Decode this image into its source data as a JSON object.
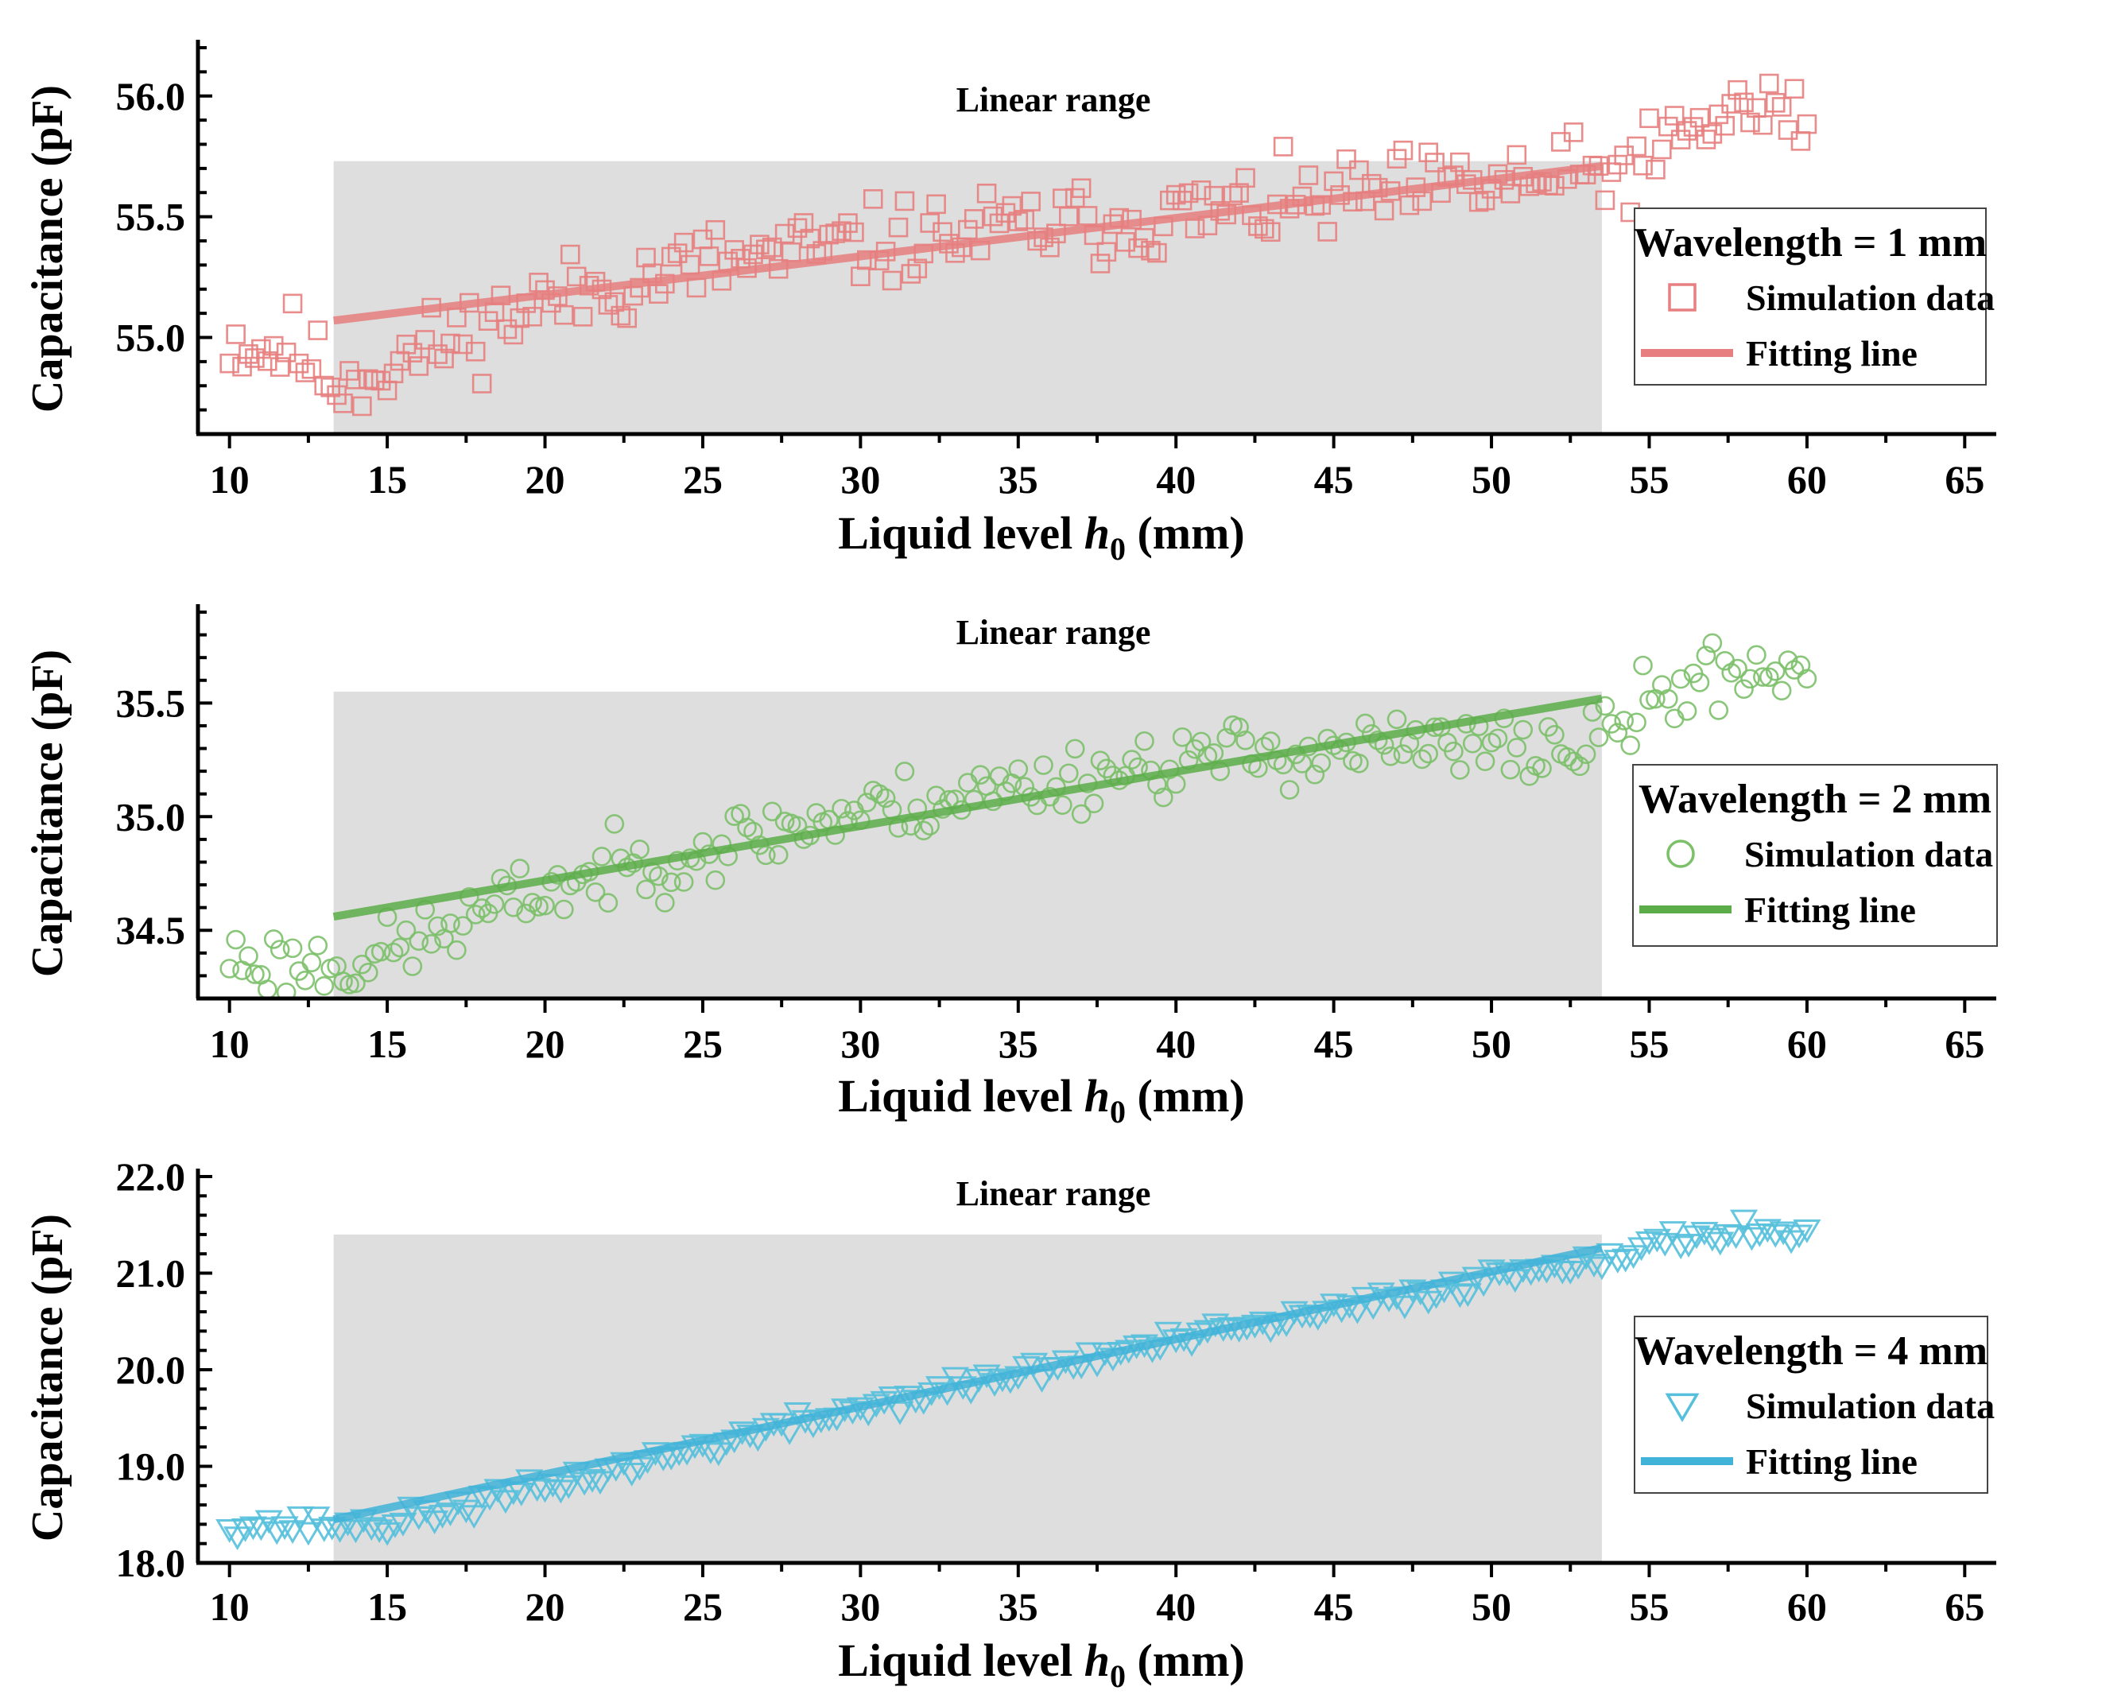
{
  "chart_data": [
    {
      "type": "scatter",
      "xlabel_prefix": "Liquid level ",
      "xlabel_var": "h",
      "xlabel_sub": "0",
      "xlabel_suffix": " (mm)",
      "ylabel": "Capacitance (pF)",
      "annotation": "Linear range",
      "xlim": [
        9,
        66
      ],
      "ylim": [
        54.6,
        56.2
      ],
      "xticks": [
        10,
        15,
        20,
        25,
        30,
        35,
        40,
        45,
        50,
        55,
        60,
        65
      ],
      "yticks": [
        55.0,
        55.5,
        56.0
      ],
      "ytick_labels": [
        "55.0",
        "55.5",
        "56.0"
      ],
      "linear_range": {
        "x": [
          13.3,
          53.5
        ],
        "y_top": 55.73
      },
      "legend": {
        "title": "Wavelength = 1 mm",
        "data_label": "Simulation data",
        "fit_label": "Fitting line"
      },
      "marker": "square",
      "color": "#e77f80",
      "fit_color": "#e77f80",
      "fit": {
        "x": [
          13.3,
          53.5
        ],
        "y": [
          55.07,
          55.71
        ]
      },
      "series": {
        "name": "Simulation data",
        "anchors_x": [
          10,
          11,
          12,
          13,
          13.5,
          15,
          20,
          25,
          30,
          35,
          40,
          45,
          50,
          53.5,
          55,
          57,
          58,
          60
        ],
        "anchors_y": [
          55.0,
          54.95,
          54.97,
          54.85,
          54.82,
          54.88,
          55.15,
          55.3,
          55.38,
          55.45,
          55.5,
          55.57,
          55.63,
          55.67,
          55.73,
          55.9,
          55.95,
          55.9
        ],
        "step": 0.2,
        "noise": 0.085,
        "seed": 11
      }
    },
    {
      "type": "scatter",
      "xlabel_prefix": "Liquid level ",
      "xlabel_var": "h",
      "xlabel_sub": "0",
      "xlabel_suffix": " (mm)",
      "ylabel": "Capacitance (pF)",
      "annotation": "Linear range",
      "xlim": [
        9,
        66
      ],
      "ylim": [
        34.2,
        35.9
      ],
      "xticks": [
        10,
        15,
        20,
        25,
        30,
        35,
        40,
        45,
        50,
        55,
        60,
        65
      ],
      "yticks": [
        34.5,
        35.0,
        35.5
      ],
      "ytick_labels": [
        "34.5",
        "35.0",
        "35.5"
      ],
      "linear_range": {
        "x": [
          13.3,
          53.5
        ],
        "y_top": 35.55
      },
      "legend": {
        "title": "Wavelength = 2 mm",
        "data_label": "Simulation data",
        "fit_label": "Fitting line"
      },
      "marker": "circle",
      "color": "#7cc06a",
      "fit_color": "#5cad4a",
      "fit": {
        "x": [
          13.3,
          53.5
        ],
        "y": [
          34.56,
          35.52
        ]
      },
      "series": {
        "name": "Simulation data",
        "anchors_x": [
          10,
          11,
          12,
          13,
          14,
          15,
          20,
          25,
          30,
          35,
          40,
          45,
          50,
          53,
          55,
          57,
          58,
          60
        ],
        "anchors_y": [
          34.38,
          34.36,
          34.35,
          34.35,
          34.36,
          34.4,
          34.68,
          34.86,
          35.02,
          35.13,
          35.25,
          35.3,
          35.3,
          35.3,
          35.5,
          35.62,
          35.65,
          35.65
        ],
        "step": 0.2,
        "noise": 0.075,
        "seed": 23
      }
    },
    {
      "type": "scatter",
      "xlabel_prefix": "Liquid level ",
      "xlabel_var": "h",
      "xlabel_sub": "0",
      "xlabel_suffix": " (mm)",
      "ylabel": "Capacitance (pF)",
      "annotation": "Linear range",
      "xlim": [
        9,
        66
      ],
      "ylim": [
        18.0,
        22.0
      ],
      "xticks": [
        10,
        15,
        20,
        25,
        30,
        35,
        40,
        45,
        50,
        55,
        60,
        65
      ],
      "yticks": [
        18.0,
        19.0,
        20.0,
        21.0,
        22.0
      ],
      "ytick_labels": [
        "18.0",
        "19.0",
        "20.0",
        "21.0",
        "22.0"
      ],
      "linear_range": {
        "x": [
          13.3,
          53.5
        ],
        "y_top": 21.4
      },
      "legend": {
        "title": "Wavelength = 4 mm",
        "data_label": "Simulation data",
        "fit_label": "Fitting line"
      },
      "marker": "triangle-down",
      "color": "#56c0dc",
      "fit_color": "#41b3d9",
      "fit": {
        "x": [
          13.3,
          53.5
        ],
        "y": [
          18.45,
          21.26
        ]
      },
      "series": {
        "name": "Simulation data",
        "anchors_x": [
          10,
          12,
          13,
          14,
          15,
          20,
          25,
          30,
          35,
          40,
          45,
          50,
          53,
          55,
          56.5,
          58,
          60
        ],
        "anchors_y": [
          18.4,
          18.38,
          18.4,
          18.38,
          18.4,
          18.78,
          19.2,
          19.6,
          19.95,
          20.3,
          20.6,
          20.95,
          21.15,
          21.25,
          21.4,
          21.45,
          21.4
        ],
        "step": 0.25,
        "noise": 0.055,
        "seed": 37
      }
    }
  ]
}
